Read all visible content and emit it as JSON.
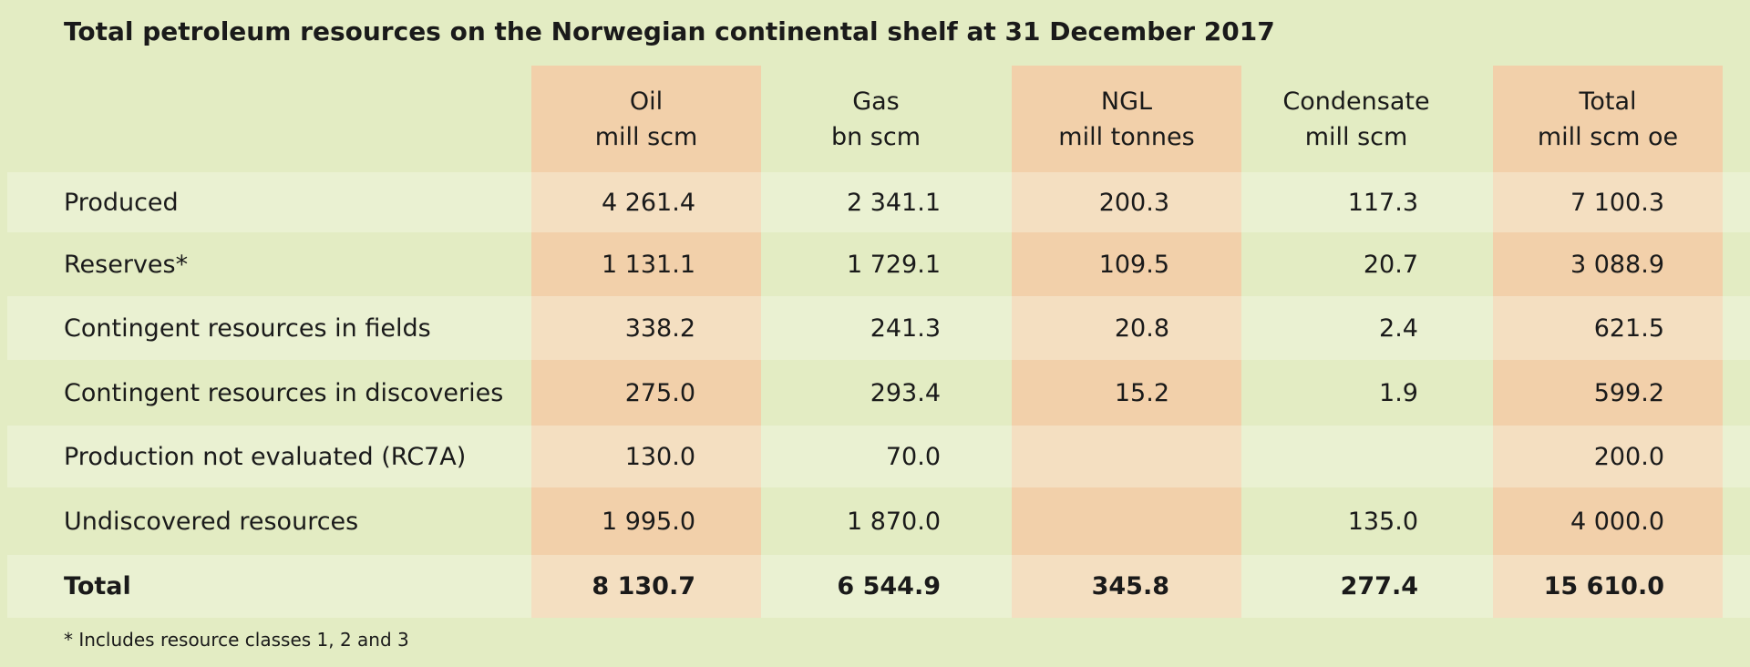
{
  "title": "Total petroleum resources on the Norwegian continental shelf at 31 December 2017",
  "colors": {
    "background": "#e3ecc3",
    "light_band": "#eaf1d2",
    "orange": "#f2d0aa",
    "orange_light": "#f4dfc1"
  },
  "columns": [
    {
      "line1": "Oil",
      "line2": "mill scm",
      "highlighted": true
    },
    {
      "line1": "Gas",
      "line2": "bn scm",
      "highlighted": false
    },
    {
      "line1": "NGL",
      "line2": "mill tonnes",
      "highlighted": true
    },
    {
      "line1": "Condensate",
      "line2": "mill scm",
      "highlighted": false
    },
    {
      "line1": "Total",
      "line2": "mill scm oe",
      "highlighted": true
    }
  ],
  "rows": [
    {
      "label": "Produced",
      "values": [
        "4 261.4",
        "2 341.1",
        "200.3",
        "117.3",
        "7 100.3"
      ],
      "bold": false
    },
    {
      "label": "Reserves*",
      "values": [
        "1 131.1",
        "1 729.1",
        "109.5",
        "20.7",
        "3 088.9"
      ],
      "bold": false
    },
    {
      "label": "Contingent resources in fields",
      "values": [
        "338.2",
        "241.3",
        "20.8",
        "2.4",
        "621.5"
      ],
      "bold": false
    },
    {
      "label": "Contingent resources in discoveries",
      "values": [
        "275.0",
        "293.4",
        "15.2",
        "1.9",
        "599.2"
      ],
      "bold": false
    },
    {
      "label": "Production not evaluated (RC7A)",
      "values": [
        "130.0",
        "70.0",
        "",
        "",
        "200.0"
      ],
      "bold": false
    },
    {
      "label": "Undiscovered resources",
      "values": [
        "1 995.0",
        "1 870.0",
        "",
        "135.0",
        "4 000.0"
      ],
      "bold": false
    },
    {
      "label": "Total",
      "values": [
        "8 130.7",
        "6 544.9",
        "345.8",
        "277.4",
        "15 610.0"
      ],
      "bold": true
    }
  ],
  "footnote": "* Includes resource classes 1, 2 and 3"
}
